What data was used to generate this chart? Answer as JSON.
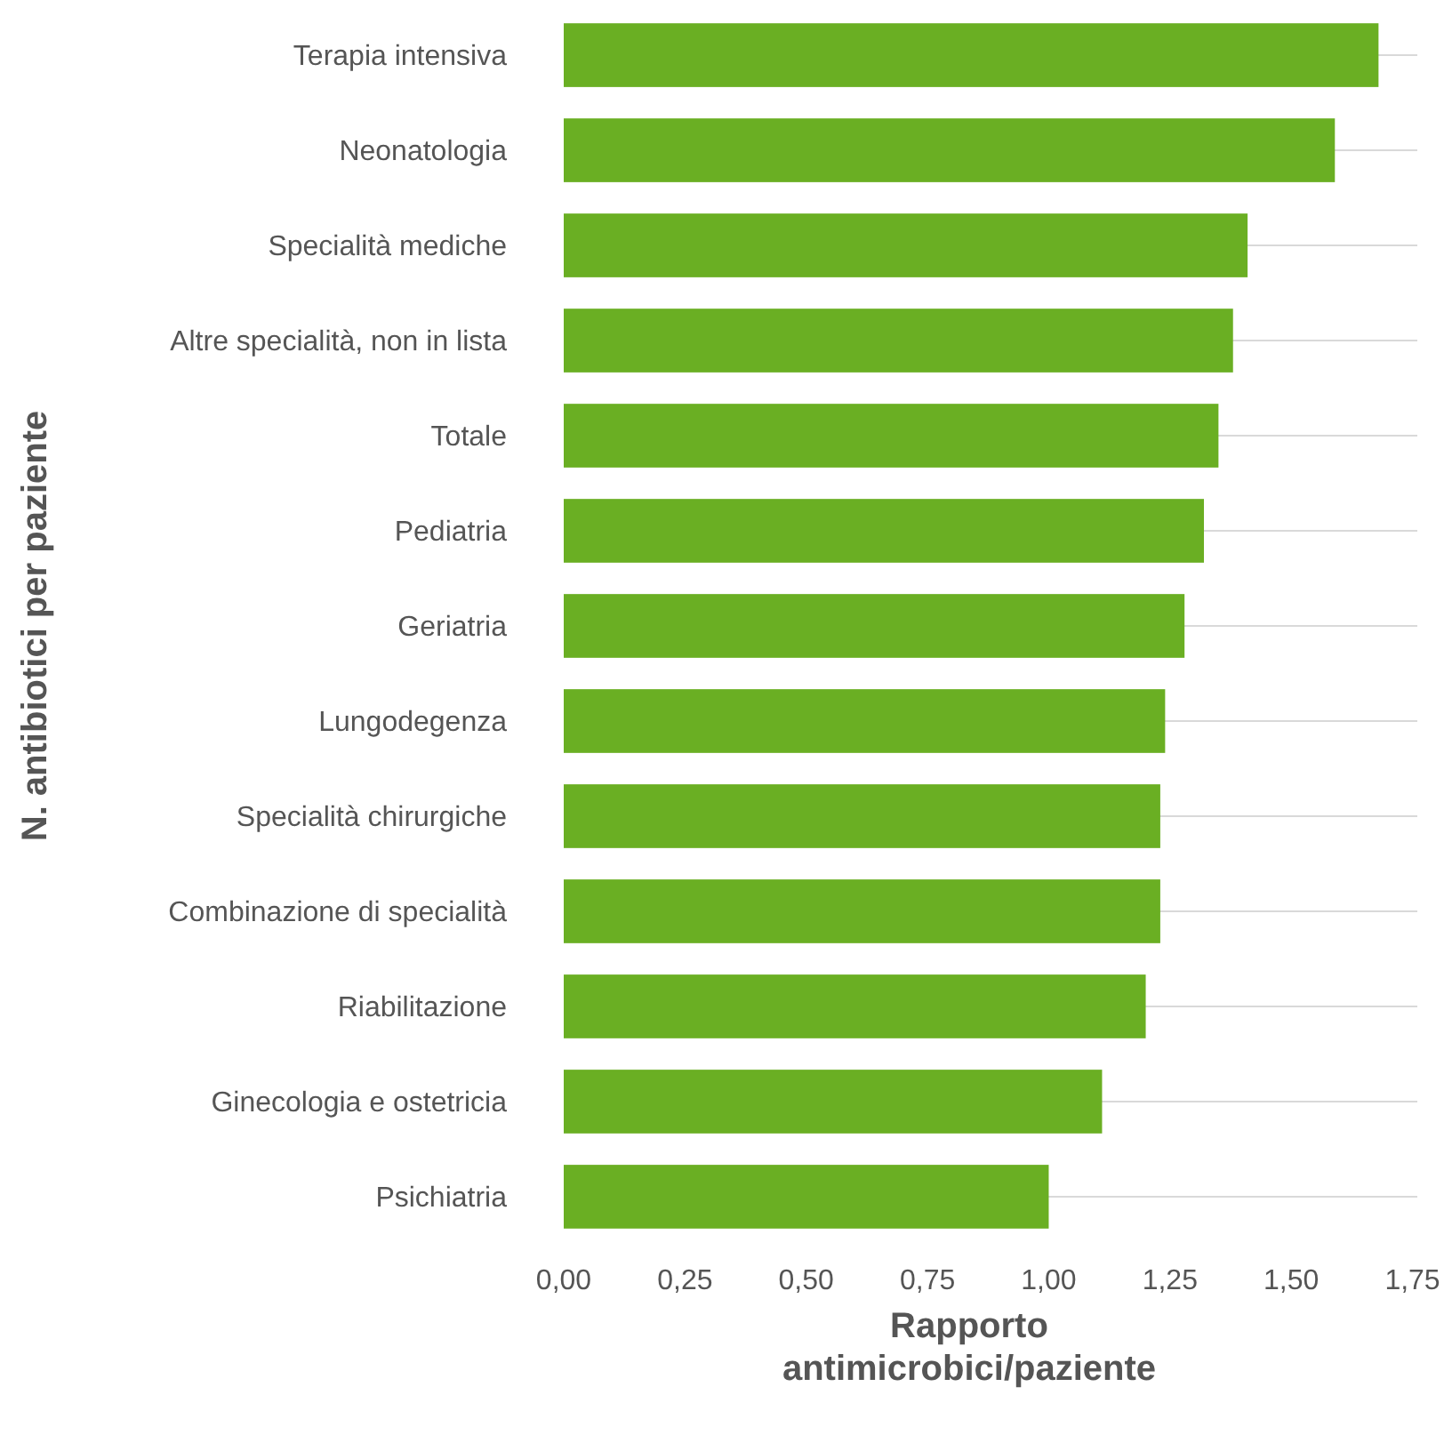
{
  "chart_data": {
    "type": "bar",
    "orientation": "horizontal",
    "xlabel": "Rapporto antimicrobici/paziente",
    "ylabel": "N. antibiotici per paziente",
    "categories": [
      "Terapia intensiva",
      "Neonatologia",
      "Specialità mediche",
      "Altre specialità, non in lista",
      "Totale",
      "Pediatria",
      "Geriatria",
      "Lungodegenza",
      "Specialità chirurgiche",
      "Combinazione di specialità",
      "Riabilitazione",
      "Ginecologia e ostetricia",
      "Psichiatria"
    ],
    "values": [
      1.68,
      1.59,
      1.41,
      1.38,
      1.35,
      1.32,
      1.28,
      1.24,
      1.23,
      1.23,
      1.2,
      1.11,
      1.0
    ],
    "color": "#6aaf23",
    "xlim": [
      0,
      1.76
    ],
    "xticks": [
      {
        "value": 0,
        "label": "0,00"
      },
      {
        "value": 0.25,
        "label": "0,25"
      },
      {
        "value": 0.5,
        "label": "0,50"
      },
      {
        "value": 0.75,
        "label": "0,75"
      },
      {
        "value": 1,
        "label": "1,00"
      },
      {
        "value": 1.25,
        "label": "1,25"
      },
      {
        "value": 1.5,
        "label": "1,50"
      },
      {
        "value": 1.75,
        "label": "1,75"
      }
    ],
    "grid": "y"
  }
}
